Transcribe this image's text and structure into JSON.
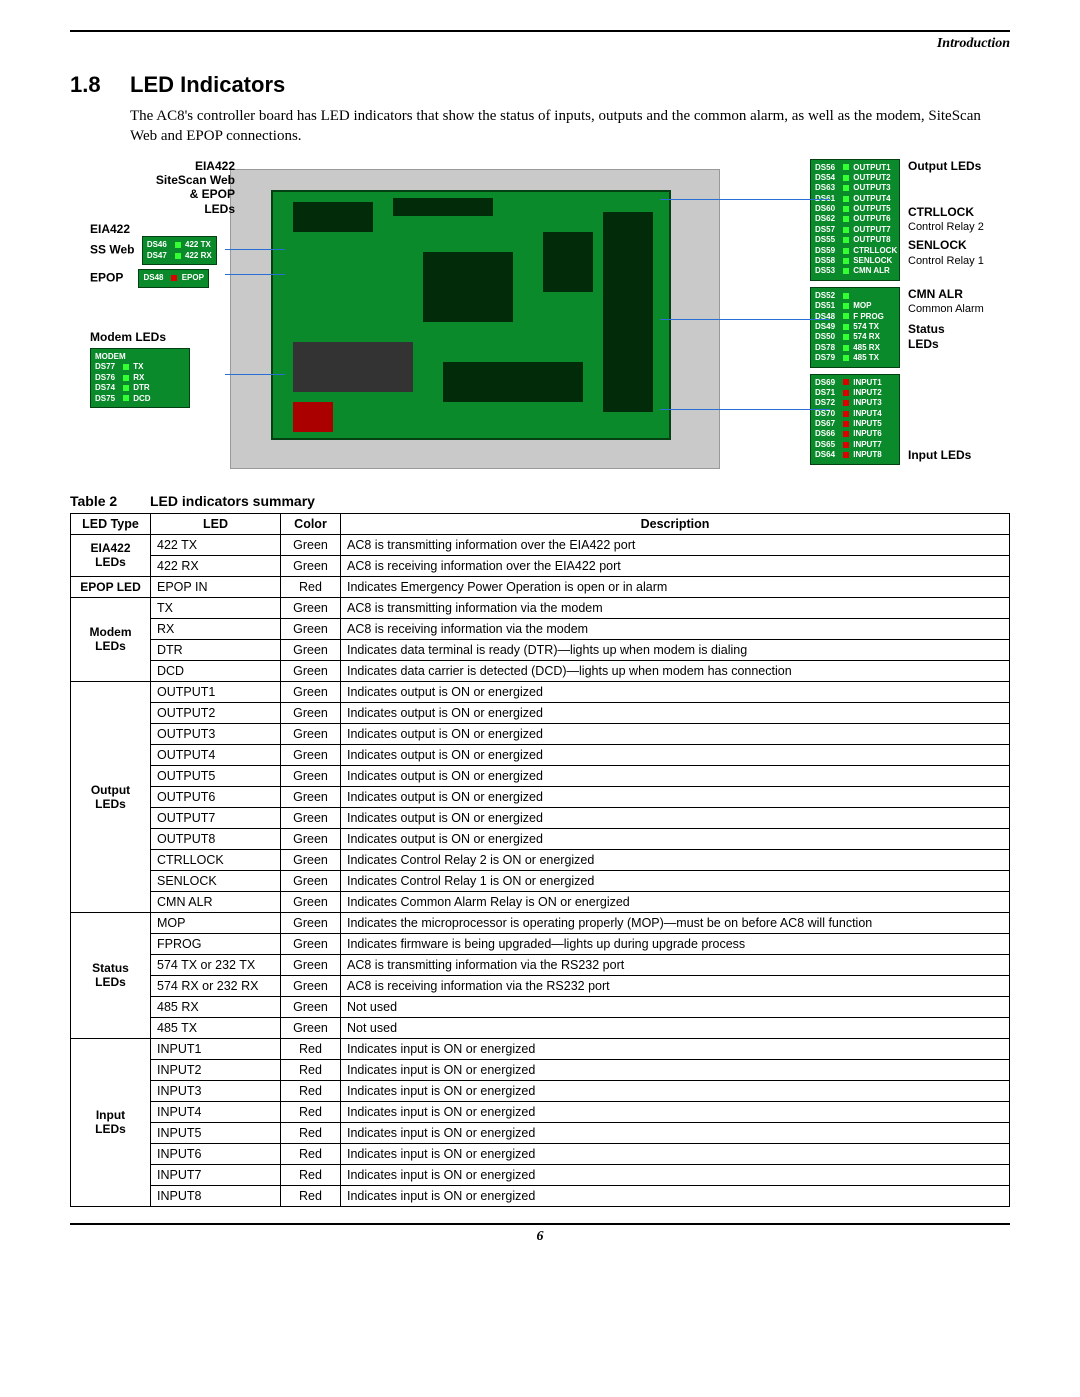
{
  "breadcrumb": "Introduction",
  "section": {
    "number": "1.8",
    "title": "LED Indicators"
  },
  "intro": "The AC8's controller board has LED indicators that show the status of inputs, outputs and the common alarm, as well as the modem, SiteScan Web and EPOP connections.",
  "diagram": {
    "left": {
      "group1": "EIA422\nSiteScan Web\n& EPOP\nLEDs",
      "eia422": "EIA422",
      "ssweb": "SS Web",
      "epop": "EPOP",
      "modem": "Modem LEDs",
      "ssweb_block": {
        "hdr": "",
        "rows": [
          {
            "ds": "DS46",
            "txt": "422 TX"
          },
          {
            "ds": "DS47",
            "txt": "422 RX"
          }
        ]
      },
      "epop_block": {
        "rows": [
          {
            "ds": "DS48",
            "txt": "EPOP"
          }
        ]
      },
      "modem_block": {
        "hdr": "MODEM",
        "rows": [
          {
            "ds": "DS77",
            "txt": "TX"
          },
          {
            "ds": "DS76",
            "txt": "RX"
          },
          {
            "ds": "DS74",
            "txt": "DTR"
          },
          {
            "ds": "DS75",
            "txt": "DCD"
          }
        ]
      }
    },
    "right": {
      "output": "Output LEDs",
      "ctrllock": "CTRLLOCK",
      "ctrllock_sub": "Control Relay 2",
      "senlock": "SENLOCK",
      "senlock_sub": "Control Relay 1",
      "cmnalr": "CMN ALR",
      "cmnalr_sub": "Common Alarm",
      "status": "Status\nLEDs",
      "input": "Input LEDs",
      "output_block": {
        "rows": [
          {
            "ds": "DS56",
            "txt": "OUTPUT1"
          },
          {
            "ds": "DS54",
            "txt": "OUTPUT2"
          },
          {
            "ds": "DS63",
            "txt": "OUTPUT3"
          },
          {
            "ds": "DS61",
            "txt": "OUTPUT4"
          },
          {
            "ds": "DS60",
            "txt": "OUTPUT5"
          },
          {
            "ds": "DS62",
            "txt": "OUTPUT6"
          },
          {
            "ds": "DS57",
            "txt": "OUTPUT7"
          },
          {
            "ds": "DS55",
            "txt": "OUTPUT8"
          },
          {
            "ds": "DS59",
            "txt": "CTRLLOCK"
          },
          {
            "ds": "DS58",
            "txt": "SENLOCK"
          },
          {
            "ds": "DS53",
            "txt": "CMN ALR"
          }
        ]
      },
      "status_block": {
        "rows": [
          {
            "ds": "DS52",
            "txt": ""
          },
          {
            "ds": "DS51",
            "txt": "MOP"
          },
          {
            "ds": "DS48",
            "txt": "F PROG"
          },
          {
            "ds": "DS49",
            "txt": "574 TX"
          },
          {
            "ds": "DS50",
            "txt": "574 RX"
          },
          {
            "ds": "DS78",
            "txt": "485 RX"
          },
          {
            "ds": "DS79",
            "txt": "485 TX"
          }
        ]
      },
      "input_block": {
        "rows": [
          {
            "ds": "DS69",
            "txt": "INPUT1"
          },
          {
            "ds": "DS71",
            "txt": "INPUT2"
          },
          {
            "ds": "DS72",
            "txt": "INPUT3"
          },
          {
            "ds": "DS70",
            "txt": "INPUT4"
          },
          {
            "ds": "DS67",
            "txt": "INPUT5"
          },
          {
            "ds": "DS66",
            "txt": "INPUT6"
          },
          {
            "ds": "DS65",
            "txt": "INPUT7"
          },
          {
            "ds": "DS64",
            "txt": "INPUT8"
          }
        ]
      }
    }
  },
  "table": {
    "caption_num": "Table 2",
    "caption": "LED indicators summary",
    "headers": [
      "LED Type",
      "LED",
      "Color",
      "Description"
    ],
    "groups": [
      {
        "type": "EIA422 LEDs",
        "rows": [
          {
            "led": "422 TX",
            "color": "Green",
            "desc": "AC8 is transmitting information over the EIA422 port"
          },
          {
            "led": "422 RX",
            "color": "Green",
            "desc": "AC8 is receiving information over the EIA422 port"
          }
        ]
      },
      {
        "type": "EPOP LED",
        "rows": [
          {
            "led": "EPOP IN",
            "color": "Red",
            "desc": "Indicates Emergency Power Operation is open or in alarm"
          }
        ]
      },
      {
        "type": "Modem LEDs",
        "rows": [
          {
            "led": "TX",
            "color": "Green",
            "desc": "AC8 is transmitting information via the modem"
          },
          {
            "led": "RX",
            "color": "Green",
            "desc": "AC8 is receiving information via the modem"
          },
          {
            "led": "DTR",
            "color": "Green",
            "desc": "Indicates data terminal is ready (DTR)—lights up when modem is dialing"
          },
          {
            "led": "DCD",
            "color": "Green",
            "desc": "Indicates data carrier is detected (DCD)—lights up when modem has connection"
          }
        ]
      },
      {
        "type": "Output LEDs",
        "rows": [
          {
            "led": "OUTPUT1",
            "color": "Green",
            "desc": "Indicates output is ON or energized"
          },
          {
            "led": "OUTPUT2",
            "color": "Green",
            "desc": "Indicates output is ON or energized"
          },
          {
            "led": "OUTPUT3",
            "color": "Green",
            "desc": "Indicates output is ON or energized"
          },
          {
            "led": "OUTPUT4",
            "color": "Green",
            "desc": "Indicates output is ON or energized"
          },
          {
            "led": "OUTPUT5",
            "color": "Green",
            "desc": "Indicates output is ON or energized"
          },
          {
            "led": "OUTPUT6",
            "color": "Green",
            "desc": "Indicates output is ON or energized"
          },
          {
            "led": "OUTPUT7",
            "color": "Green",
            "desc": "Indicates output is ON or energized"
          },
          {
            "led": "OUTPUT8",
            "color": "Green",
            "desc": "Indicates output is ON or energized"
          },
          {
            "led": "CTRLLOCK",
            "color": "Green",
            "desc": "Indicates Control Relay 2 is ON or energized"
          },
          {
            "led": "SENLOCK",
            "color": "Green",
            "desc": "Indicates Control Relay 1 is ON or energized"
          },
          {
            "led": "CMN ALR",
            "color": "Green",
            "desc": "Indicates Common Alarm Relay is ON or energized"
          }
        ]
      },
      {
        "type": "Status LEDs",
        "rows": [
          {
            "led": "MOP",
            "color": "Green",
            "desc": "Indicates the microprocessor is operating properly (MOP)—must be on before AC8 will function"
          },
          {
            "led": "FPROG",
            "color": "Green",
            "desc": "Indicates firmware is being upgraded—lights up during upgrade process"
          },
          {
            "led": "574 TX or 232 TX",
            "color": "Green",
            "desc": "AC8 is transmitting information via the RS232 port"
          },
          {
            "led": "574 RX or 232 RX",
            "color": "Green",
            "desc": "AC8 is receiving information via the RS232 port"
          },
          {
            "led": "485 RX",
            "color": "Green",
            "desc": "Not used"
          },
          {
            "led": "485 TX",
            "color": "Green",
            "desc": "Not used"
          }
        ]
      },
      {
        "type": "Input LEDs",
        "rows": [
          {
            "led": "INPUT1",
            "color": "Red",
            "desc": "Indicates input is ON or energized"
          },
          {
            "led": "INPUT2",
            "color": "Red",
            "desc": "Indicates input is ON or energized"
          },
          {
            "led": "INPUT3",
            "color": "Red",
            "desc": "Indicates input is ON or energized"
          },
          {
            "led": "INPUT4",
            "color": "Red",
            "desc": "Indicates input is ON or energized"
          },
          {
            "led": "INPUT5",
            "color": "Red",
            "desc": "Indicates input is ON or energized"
          },
          {
            "led": "INPUT6",
            "color": "Red",
            "desc": "Indicates input is ON or energized"
          },
          {
            "led": "INPUT7",
            "color": "Red",
            "desc": "Indicates input is ON or energized"
          },
          {
            "led": "INPUT8",
            "color": "Red",
            "desc": "Indicates input is ON or energized"
          }
        ]
      }
    ]
  },
  "page_number": "6"
}
